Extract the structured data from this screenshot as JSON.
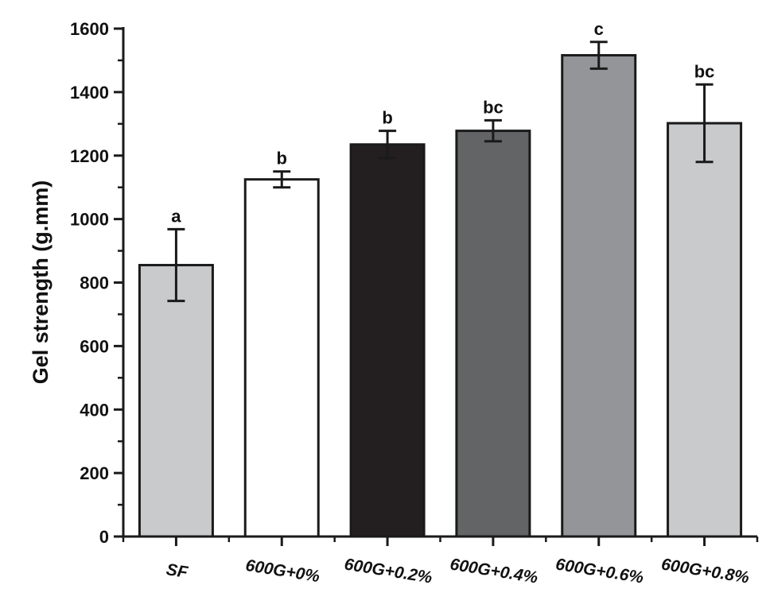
{
  "chart_data": {
    "type": "bar",
    "title": "",
    "xlabel": "",
    "ylabel": "Gel strength (g.mm)",
    "ylim": [
      0,
      1600
    ],
    "yticks": [
      0,
      200,
      400,
      600,
      800,
      1000,
      1200,
      1400,
      1600
    ],
    "grid": false,
    "categories": [
      "SF",
      "600G+0%",
      "600G+0.2%",
      "600G+0.4%",
      "600G+0.6%",
      "600G+0.8%"
    ],
    "values": [
      855,
      1125,
      1235,
      1278,
      1516,
      1302
    ],
    "errors": [
      113,
      25,
      43,
      33,
      42,
      122
    ],
    "significance_labels": [
      "a",
      "b",
      "b",
      "bc",
      "c",
      "bc"
    ],
    "bar_colors": [
      "#c8cacc",
      "#ffffff",
      "#231f20",
      "#636466",
      "#939598",
      "#c8cacc"
    ]
  }
}
